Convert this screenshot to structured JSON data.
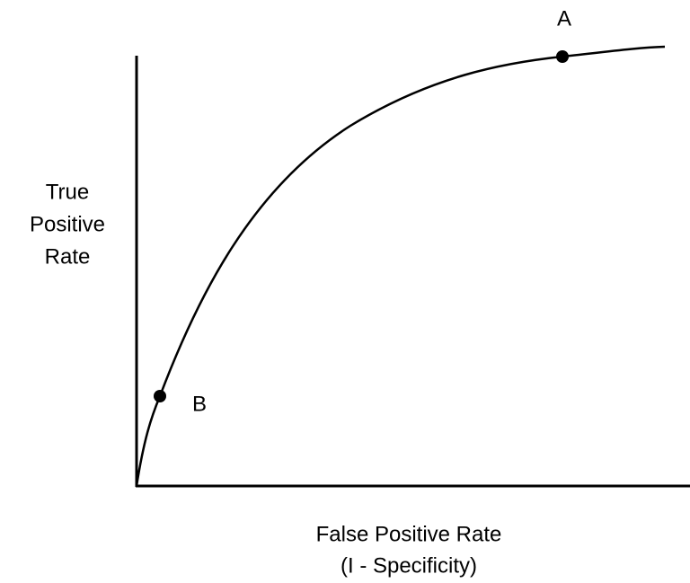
{
  "y_axis_label": [
    "True",
    "Positive",
    "Rate"
  ],
  "x_axis_label": [
    "False Positive Rate",
    "(I - Specificity)"
  ],
  "points": [
    {
      "label": "A"
    },
    {
      "label": "B"
    }
  ]
}
